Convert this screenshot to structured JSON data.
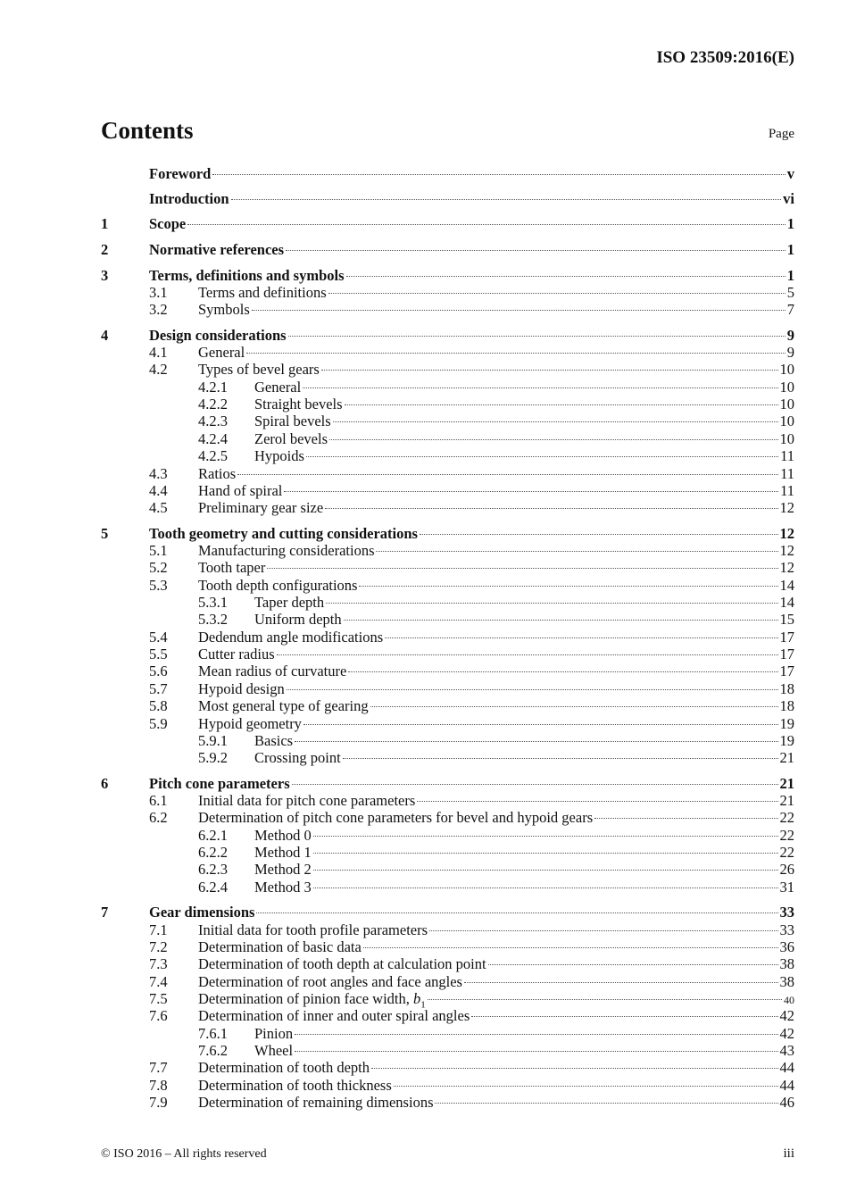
{
  "header": {
    "doc_id": "ISO 23509:2016(E)"
  },
  "title": "Contents",
  "page_label": "Page",
  "entries": [
    {
      "level": 0,
      "num": "",
      "title": "Foreword",
      "page": "v"
    },
    {
      "level": 0,
      "num": "",
      "title": "Introduction",
      "page": "vi"
    },
    {
      "level": 0,
      "num": "1",
      "title": "Scope",
      "page": "1"
    },
    {
      "level": 0,
      "num": "2",
      "title": "Normative references",
      "page": "1"
    },
    {
      "level": 0,
      "num": "3",
      "title": "Terms, definitions and symbols",
      "page": "1"
    },
    {
      "level": 1,
      "num": "3.1",
      "title": "Terms and definitions",
      "page": "5"
    },
    {
      "level": 1,
      "num": "3.2",
      "title": "Symbols",
      "page": "7"
    },
    {
      "level": 0,
      "num": "4",
      "title": "Design considerations",
      "page": "9"
    },
    {
      "level": 1,
      "num": "4.1",
      "title": "General",
      "page": "9"
    },
    {
      "level": 1,
      "num": "4.2",
      "title": "Types of bevel gears",
      "page": "10"
    },
    {
      "level": 2,
      "num": "4.2.1",
      "title": "General",
      "page": "10"
    },
    {
      "level": 2,
      "num": "4.2.2",
      "title": "Straight bevels",
      "page": "10"
    },
    {
      "level": 2,
      "num": "4.2.3",
      "title": "Spiral bevels",
      "page": "10"
    },
    {
      "level": 2,
      "num": "4.2.4",
      "title": "Zerol bevels",
      "page": "10"
    },
    {
      "level": 2,
      "num": "4.2.5",
      "title": "Hypoids",
      "page": "11"
    },
    {
      "level": 1,
      "num": "4.3",
      "title": "Ratios",
      "page": "11"
    },
    {
      "level": 1,
      "num": "4.4",
      "title": "Hand of spiral",
      "page": "11"
    },
    {
      "level": 1,
      "num": "4.5",
      "title": "Preliminary gear size",
      "page": "12"
    },
    {
      "level": 0,
      "num": "5",
      "title": "Tooth geometry and cutting considerations",
      "page": "12"
    },
    {
      "level": 1,
      "num": "5.1",
      "title": "Manufacturing considerations",
      "page": "12"
    },
    {
      "level": 1,
      "num": "5.2",
      "title": "Tooth taper",
      "page": "12"
    },
    {
      "level": 1,
      "num": "5.3",
      "title": "Tooth depth configurations",
      "page": "14"
    },
    {
      "level": 2,
      "num": "5.3.1",
      "title": "Taper depth",
      "page": "14"
    },
    {
      "level": 2,
      "num": "5.3.2",
      "title": "Uniform depth",
      "page": "15"
    },
    {
      "level": 1,
      "num": "5.4",
      "title": "Dedendum angle modifications",
      "page": "17"
    },
    {
      "level": 1,
      "num": "5.5",
      "title": "Cutter radius",
      "page": "17"
    },
    {
      "level": 1,
      "num": "5.6",
      "title": "Mean radius of curvature",
      "page": "17"
    },
    {
      "level": 1,
      "num": "5.7",
      "title": "Hypoid design",
      "page": "18"
    },
    {
      "level": 1,
      "num": "5.8",
      "title": "Most general type of gearing",
      "page": "18"
    },
    {
      "level": 1,
      "num": "5.9",
      "title": "Hypoid geometry",
      "page": "19"
    },
    {
      "level": 2,
      "num": "5.9.1",
      "title": "Basics",
      "page": "19"
    },
    {
      "level": 2,
      "num": "5.9.2",
      "title": "Crossing point",
      "page": "21"
    },
    {
      "level": 0,
      "num": "6",
      "title": "Pitch cone parameters",
      "page": "21"
    },
    {
      "level": 1,
      "num": "6.1",
      "title": "Initial data for pitch cone parameters",
      "page": "21"
    },
    {
      "level": 1,
      "num": "6.2",
      "title": "Determination of pitch cone parameters for bevel and hypoid gears",
      "page": "22"
    },
    {
      "level": 2,
      "num": "6.2.1",
      "title": "Method 0",
      "page": "22"
    },
    {
      "level": 2,
      "num": "6.2.2",
      "title": "Method 1",
      "page": "22"
    },
    {
      "level": 2,
      "num": "6.2.3",
      "title": "Method 2",
      "page": "26"
    },
    {
      "level": 2,
      "num": "6.2.4",
      "title": "Method 3",
      "page": "31"
    },
    {
      "level": 0,
      "num": "7",
      "title": "Gear dimensions",
      "page": "33"
    },
    {
      "level": 1,
      "num": "7.1",
      "title": "Initial data for tooth profile parameters",
      "page": "33"
    },
    {
      "level": 1,
      "num": "7.2",
      "title": "Determination of basic data",
      "page": "36"
    },
    {
      "level": 1,
      "num": "7.3",
      "title": "Determination of tooth depth at calculation point",
      "page": "38"
    },
    {
      "level": 1,
      "num": "7.4",
      "title": "Determination of root angles and face angles",
      "page": "38"
    },
    {
      "level": 1,
      "num": "7.5",
      "title": "Determination of pinion face width, ",
      "var": "b",
      "sub": "1",
      "page": "40"
    },
    {
      "level": 1,
      "num": "7.6",
      "title": "Determination of inner and outer spiral angles",
      "page": "42"
    },
    {
      "level": 2,
      "num": "7.6.1",
      "title": "Pinion",
      "page": "42"
    },
    {
      "level": 2,
      "num": "7.6.2",
      "title": "Wheel",
      "page": "43"
    },
    {
      "level": 1,
      "num": "7.7",
      "title": "Determination of tooth depth",
      "page": "44"
    },
    {
      "level": 1,
      "num": "7.8",
      "title": "Determination of tooth thickness",
      "page": "44"
    },
    {
      "level": 1,
      "num": "7.9",
      "title": "Determination of remaining dimensions",
      "page": "46"
    }
  ],
  "footer": {
    "copyright": "© ISO 2016 – All rights reserved",
    "page": "iii"
  }
}
